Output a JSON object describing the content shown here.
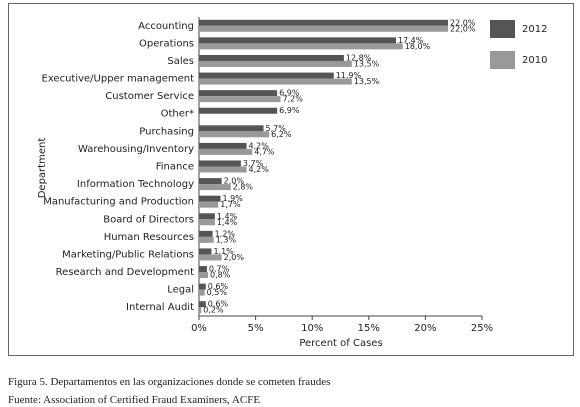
{
  "chart_data": {
    "type": "hbar",
    "categories": [
      "Accounting",
      "Operations",
      "Sales",
      "Executive/Upper management",
      "Customer Service",
      "Other*",
      "Purchasing",
      "Warehousing/Inventory",
      "Finance",
      "Information Technology",
      "Manufacturing and Production",
      "Board of Directors",
      "Human Resources",
      "Marketing/Public Relations",
      "Research and Development",
      "Legal",
      "Internal Audit"
    ],
    "series": [
      {
        "name": "2012",
        "color": "#555555",
        "values": [
          22.0,
          17.4,
          12.8,
          11.9,
          6.9,
          6.9,
          5.7,
          4.2,
          3.7,
          2.0,
          1.9,
          1.4,
          1.2,
          1.1,
          0.7,
          0.6,
          0.6
        ],
        "value_labels": [
          "22,0%",
          "17,4%",
          "12,8%",
          "11,9%",
          "6,9%",
          "6,9%",
          "5,7%",
          "4,2%",
          "3,7%",
          "2,0%",
          "1,9%",
          "1,4%",
          "1,2%",
          "1,1%",
          "0,7%",
          "0,6%",
          "0,6%"
        ]
      },
      {
        "name": "2010",
        "color": "#999999",
        "values": [
          22.0,
          18.0,
          13.5,
          13.5,
          7.2,
          null,
          6.2,
          4.7,
          4.2,
          2.8,
          1.7,
          1.4,
          1.3,
          2.0,
          0.8,
          0.5,
          0.2
        ],
        "value_labels": [
          "22,0%",
          "18,0%",
          "13,5%",
          "13,5%",
          "7,2%",
          null,
          "6,2%",
          "4,7%",
          "4,2%",
          "2,8%",
          "1,7%",
          "1,4%",
          "1,3%",
          "2,0%",
          "0,8%",
          "0,5%",
          "0,2%"
        ]
      }
    ],
    "xlim": [
      0,
      25
    ],
    "xticks": [
      {
        "value": 0,
        "label": "0%"
      },
      {
        "value": 5,
        "label": "5%"
      },
      {
        "value": 10,
        "label": "10%"
      },
      {
        "value": 15,
        "label": "15%"
      },
      {
        "value": 20,
        "label": "20%"
      },
      {
        "value": 25,
        "label": "25%"
      }
    ],
    "xlabel": "Percent of Cases",
    "ylabel": "Department",
    "legend": "right"
  },
  "caption": {
    "figure": "Figura 5. Departamentos en las organizaciones donde se cometen fraudes",
    "source": "Fuente: Association of Certified Fraud Examiners, ACFE"
  }
}
